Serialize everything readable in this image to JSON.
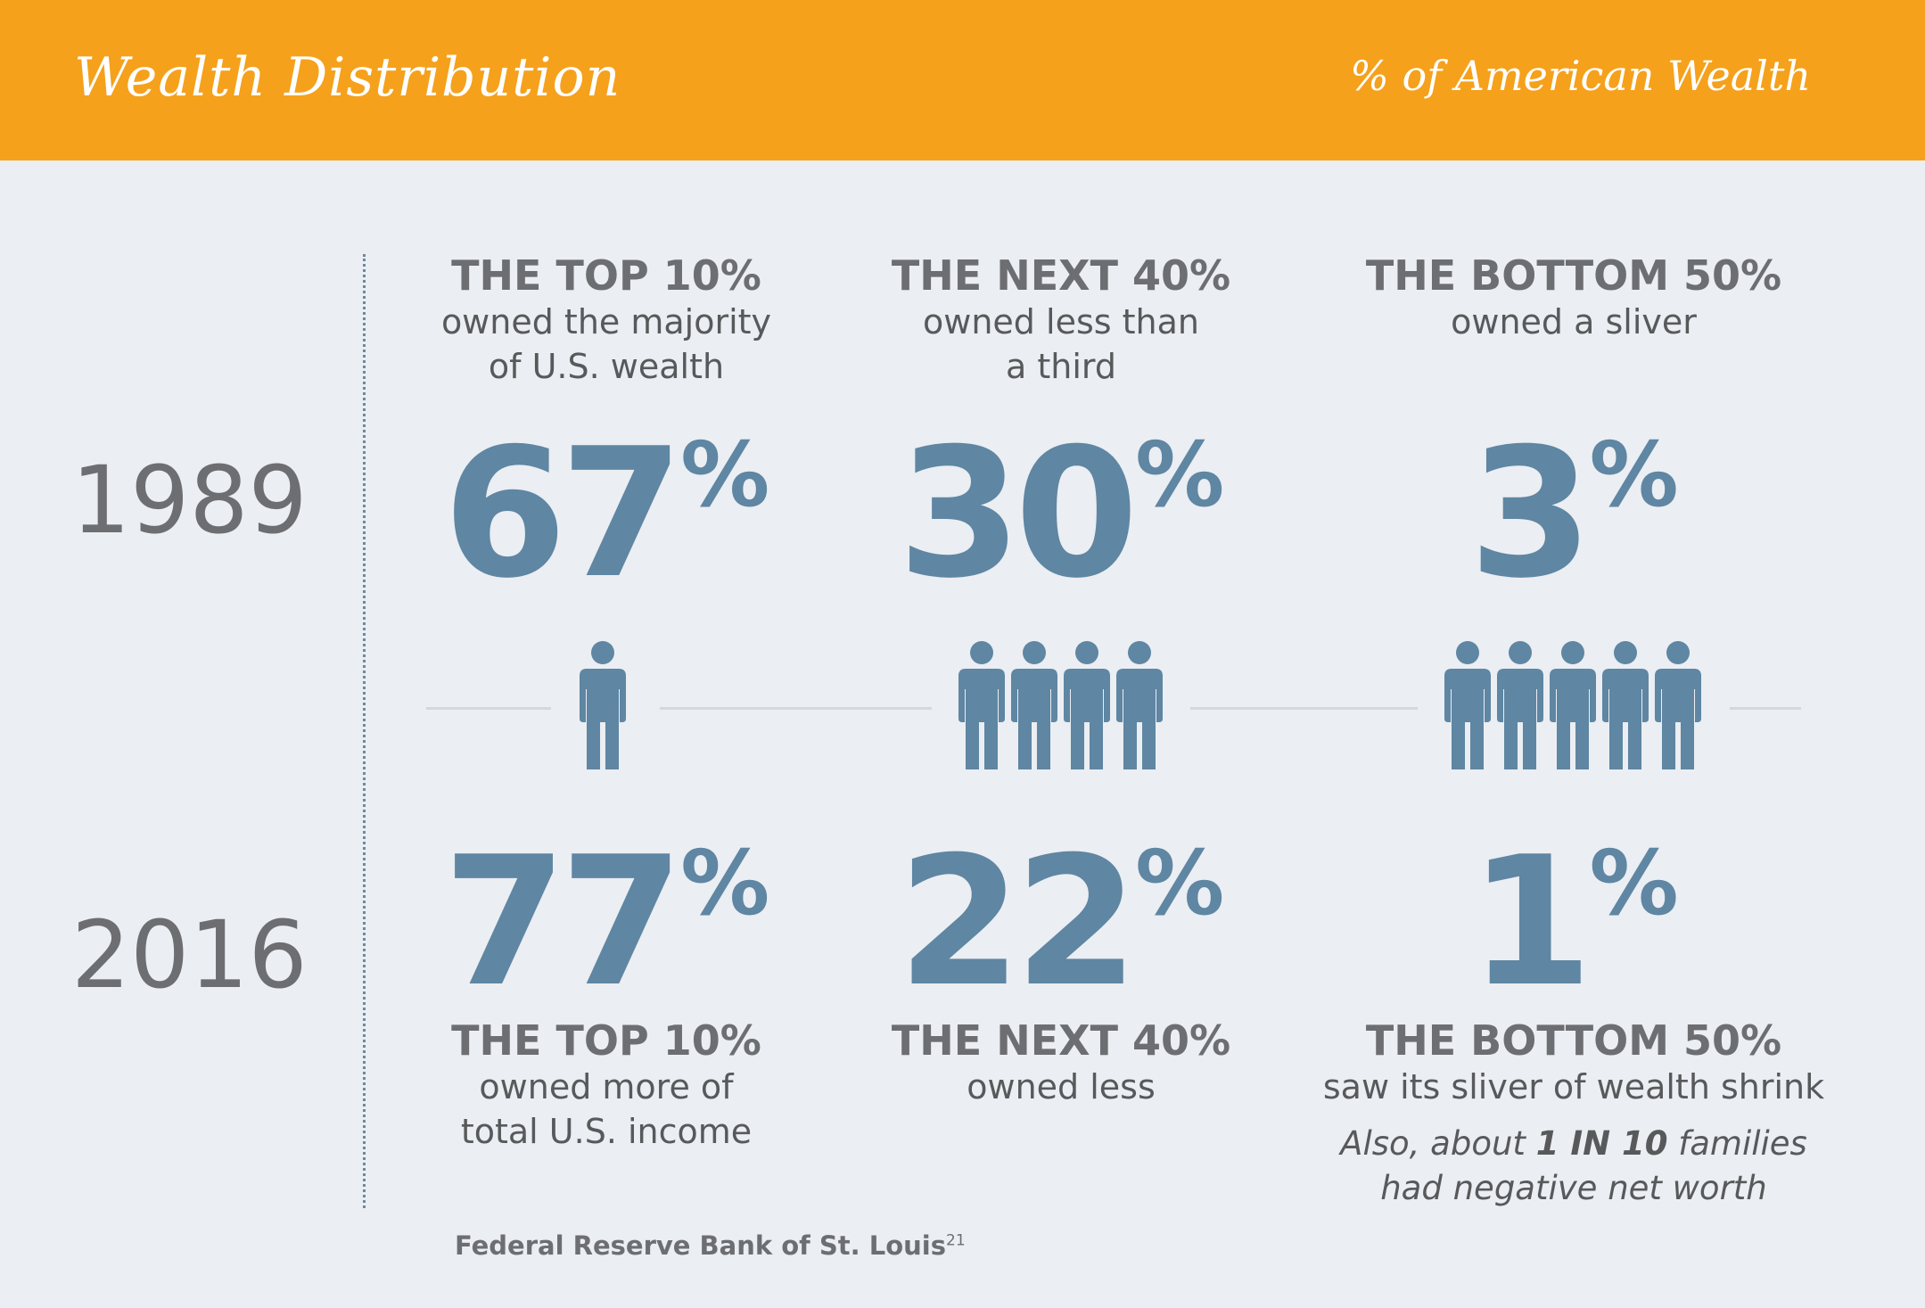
{
  "header": {
    "title": "Wealth Distribution",
    "subtitle": "% of American Wealth"
  },
  "years": {
    "first": "1989",
    "second": "2016"
  },
  "groups": [
    {
      "head_1989": "THE TOP 10%",
      "desc_1989": "owned the majority\nof U.S. wealth",
      "value_1989": "67",
      "value_2016": "77",
      "head_2016": "THE TOP 10%",
      "desc_2016": "owned more of\ntotal U.S. income",
      "people_count": 1
    },
    {
      "head_1989": "THE NEXT 40%",
      "desc_1989": "owned less than\na third",
      "value_1989": "30",
      "value_2016": "22",
      "head_2016": "THE NEXT 40%",
      "desc_2016": "owned less",
      "people_count": 4
    },
    {
      "head_1989": "THE BOTTOM 50%",
      "desc_1989": "owned a sliver",
      "value_1989": "3",
      "value_2016": "1",
      "head_2016": "THE BOTTOM 50%",
      "desc_2016": "saw its sliver of wealth shrink",
      "people_count": 5
    }
  ],
  "percent_sign": "%",
  "note": {
    "pre": "Also, about ",
    "bold": "1 IN 10",
    "post": " families",
    "line2": "had negative net worth"
  },
  "source": {
    "text": "Federal Reserve Bank of St. Louis",
    "footnote": "21"
  },
  "colors": {
    "header_bg": "#f5a11c",
    "accent_blue": "#5f86a3",
    "text_gray": "#6d6e71",
    "background": "#ebeef2"
  },
  "icons": [
    "person-icon"
  ]
}
